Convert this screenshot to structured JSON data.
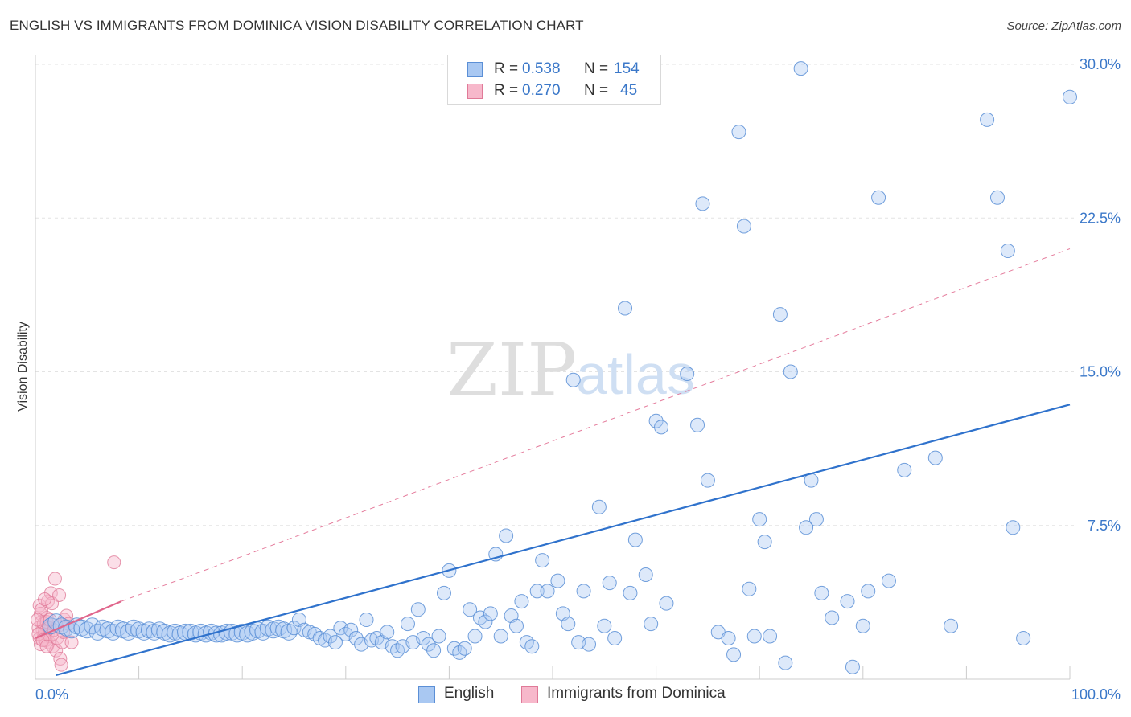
{
  "header": {
    "title": "ENGLISH VS IMMIGRANTS FROM DOMINICA VISION DISABILITY CORRELATION CHART",
    "source": "Source: ZipAtlas.com"
  },
  "colors": {
    "blue_fill": "#a9c8f2",
    "blue_stroke": "#5b8fd6",
    "blue_line": "#2f72cc",
    "pink_fill": "#f7b8cb",
    "pink_stroke": "#e07a98",
    "pink_line": "#e0668c",
    "axis_text": "#3b78c9",
    "grid": "#e3e3e3"
  },
  "legend_top": {
    "english": {
      "r_label": "R =",
      "r_value": "0.538",
      "n_label": "N =",
      "n_value": "154"
    },
    "dominica": {
      "r_label": "R =",
      "r_value": "0.270",
      "n_label": "N =",
      "n_value": "45"
    }
  },
  "legend_bottom": {
    "english": "English",
    "dominica": "Immigrants from Dominica"
  },
  "watermark": {
    "zip": "ZIP",
    "atlas": "atlas"
  },
  "chart_data": {
    "type": "scatter",
    "title": "ENGLISH VS IMMIGRANTS FROM DOMINICA VISION DISABILITY CORRELATION CHART",
    "xlabel": "",
    "ylabel": "Vision Disability",
    "xlim": [
      0,
      100
    ],
    "ylim": [
      0,
      30
    ],
    "x_tick_labels": [
      "0.0%",
      "100.0%"
    ],
    "y_ticks": [
      7.5,
      15.0,
      22.5,
      30.0
    ],
    "y_tick_labels": [
      "7.5%",
      "15.0%",
      "22.5%",
      "30.0%"
    ],
    "grid": true,
    "series": [
      {
        "name": "English",
        "r": 0.538,
        "n": 154,
        "trend": {
          "x": [
            2,
            100
          ],
          "y": [
            0.2,
            13.4
          ],
          "style": "solid"
        },
        "points": [
          [
            1.5,
            2.6
          ],
          [
            2.0,
            2.8
          ],
          [
            2.5,
            2.6
          ],
          [
            3.0,
            2.5
          ],
          [
            3.5,
            2.4
          ],
          [
            4.0,
            2.6
          ],
          [
            4.5,
            2.5
          ],
          [
            5.0,
            2.4
          ],
          [
            5.5,
            2.6
          ],
          [
            6.0,
            2.3
          ],
          [
            6.5,
            2.5
          ],
          [
            7.0,
            2.4
          ],
          [
            7.5,
            2.3
          ],
          [
            8.0,
            2.5
          ],
          [
            8.5,
            2.4
          ],
          [
            9.0,
            2.3
          ],
          [
            9.5,
            2.5
          ],
          [
            10.0,
            2.4
          ],
          [
            10.5,
            2.3
          ],
          [
            11.0,
            2.4
          ],
          [
            11.5,
            2.3
          ],
          [
            12.0,
            2.4
          ],
          [
            12.5,
            2.3
          ],
          [
            13.0,
            2.2
          ],
          [
            13.5,
            2.3
          ],
          [
            14.0,
            2.2
          ],
          [
            14.5,
            2.3
          ],
          [
            15.0,
            2.3
          ],
          [
            15.5,
            2.2
          ],
          [
            16.0,
            2.3
          ],
          [
            16.5,
            2.2
          ],
          [
            17.0,
            2.3
          ],
          [
            17.5,
            2.2
          ],
          [
            18.0,
            2.2
          ],
          [
            18.5,
            2.3
          ],
          [
            19.0,
            2.3
          ],
          [
            19.5,
            2.2
          ],
          [
            20.0,
            2.3
          ],
          [
            20.5,
            2.2
          ],
          [
            21.0,
            2.3
          ],
          [
            21.5,
            2.4
          ],
          [
            22.0,
            2.3
          ],
          [
            22.5,
            2.5
          ],
          [
            23.0,
            2.4
          ],
          [
            23.5,
            2.5
          ],
          [
            24.0,
            2.4
          ],
          [
            24.5,
            2.3
          ],
          [
            25.0,
            2.5
          ],
          [
            25.5,
            2.9
          ],
          [
            26.0,
            2.4
          ],
          [
            26.5,
            2.3
          ],
          [
            27.0,
            2.2
          ],
          [
            27.5,
            2.0
          ],
          [
            28.0,
            1.9
          ],
          [
            28.5,
            2.1
          ],
          [
            29.0,
            1.8
          ],
          [
            29.5,
            2.5
          ],
          [
            30.0,
            2.2
          ],
          [
            30.5,
            2.4
          ],
          [
            31.0,
            2.0
          ],
          [
            31.5,
            1.7
          ],
          [
            32.0,
            2.9
          ],
          [
            32.5,
            1.9
          ],
          [
            33.0,
            2.0
          ],
          [
            33.5,
            1.8
          ],
          [
            34.0,
            2.3
          ],
          [
            34.5,
            1.6
          ],
          [
            35.0,
            1.4
          ],
          [
            35.5,
            1.6
          ],
          [
            36.0,
            2.7
          ],
          [
            36.5,
            1.8
          ],
          [
            37.0,
            3.4
          ],
          [
            37.5,
            2.0
          ],
          [
            38.0,
            1.7
          ],
          [
            38.5,
            1.4
          ],
          [
            39.0,
            2.1
          ],
          [
            39.5,
            4.2
          ],
          [
            40.0,
            5.3
          ],
          [
            40.5,
            1.5
          ],
          [
            41.0,
            1.3
          ],
          [
            41.5,
            1.5
          ],
          [
            42.0,
            3.4
          ],
          [
            42.5,
            2.1
          ],
          [
            43.0,
            3.0
          ],
          [
            43.5,
            2.8
          ],
          [
            44.0,
            3.2
          ],
          [
            44.5,
            6.1
          ],
          [
            45.0,
            2.1
          ],
          [
            45.5,
            7.0
          ],
          [
            46.0,
            3.1
          ],
          [
            46.5,
            2.6
          ],
          [
            47.0,
            3.8
          ],
          [
            47.5,
            1.8
          ],
          [
            48.0,
            1.6
          ],
          [
            48.5,
            4.3
          ],
          [
            49.0,
            5.8
          ],
          [
            49.5,
            4.3
          ],
          [
            50.5,
            4.8
          ],
          [
            51.0,
            3.2
          ],
          [
            51.5,
            2.7
          ],
          [
            52.0,
            14.6
          ],
          [
            52.5,
            1.8
          ],
          [
            53.0,
            4.3
          ],
          [
            53.5,
            1.7
          ],
          [
            54.5,
            8.4
          ],
          [
            55.0,
            2.6
          ],
          [
            55.5,
            4.7
          ],
          [
            56.0,
            2.0
          ],
          [
            57.0,
            18.1
          ],
          [
            57.5,
            4.2
          ],
          [
            58.0,
            6.8
          ],
          [
            59.0,
            5.1
          ],
          [
            59.5,
            2.7
          ],
          [
            60.0,
            12.6
          ],
          [
            60.5,
            12.3
          ],
          [
            61.0,
            3.7
          ],
          [
            63.0,
            14.9
          ],
          [
            64.0,
            12.4
          ],
          [
            64.5,
            23.2
          ],
          [
            65.0,
            9.7
          ],
          [
            66.0,
            2.3
          ],
          [
            67.0,
            2.0
          ],
          [
            67.5,
            1.2
          ],
          [
            68.0,
            26.7
          ],
          [
            68.5,
            22.1
          ],
          [
            69.0,
            4.4
          ],
          [
            69.5,
            2.1
          ],
          [
            70.0,
            7.8
          ],
          [
            70.5,
            6.7
          ],
          [
            71.0,
            2.1
          ],
          [
            72.0,
            17.8
          ],
          [
            72.5,
            0.8
          ],
          [
            73.0,
            15.0
          ],
          [
            74.0,
            29.8
          ],
          [
            74.5,
            7.4
          ],
          [
            75.0,
            9.7
          ],
          [
            75.5,
            7.8
          ],
          [
            76.0,
            4.2
          ],
          [
            77.0,
            3.0
          ],
          [
            78.5,
            3.8
          ],
          [
            79.0,
            0.6
          ],
          [
            80.0,
            2.6
          ],
          [
            80.5,
            4.3
          ],
          [
            81.5,
            23.5
          ],
          [
            82.5,
            4.8
          ],
          [
            84.0,
            10.2
          ],
          [
            87.0,
            10.8
          ],
          [
            88.5,
            2.6
          ],
          [
            92.0,
            27.3
          ],
          [
            93.0,
            23.5
          ],
          [
            94.0,
            20.9
          ],
          [
            94.5,
            7.4
          ],
          [
            95.5,
            2.0
          ],
          [
            100.0,
            28.4
          ]
        ]
      },
      {
        "name": "Immigrants from Dominica",
        "r": 0.27,
        "n": 45,
        "trend": {
          "x": [
            0,
            8.3
          ],
          "y": [
            2.0,
            3.8
          ],
          "style": "solid",
          "extended_to": [
            100,
            21.0
          ],
          "extended_style": "dashed"
        },
        "points": [
          [
            0.4,
            3.6
          ],
          [
            0.5,
            3.2
          ],
          [
            0.6,
            2.8
          ],
          [
            0.7,
            2.4
          ],
          [
            0.8,
            2.1
          ],
          [
            0.9,
            1.9
          ],
          [
            1.0,
            2.6
          ],
          [
            1.1,
            3.0
          ],
          [
            1.2,
            2.2
          ],
          [
            1.3,
            1.8
          ],
          [
            0.3,
            2.5
          ],
          [
            0.4,
            2.0
          ],
          [
            0.5,
            1.7
          ],
          [
            0.6,
            3.4
          ],
          [
            0.8,
            2.7
          ],
          [
            0.9,
            2.3
          ],
          [
            1.0,
            1.9
          ],
          [
            1.1,
            2.8
          ],
          [
            1.2,
            3.8
          ],
          [
            1.3,
            2.5
          ],
          [
            1.4,
            2.1
          ],
          [
            1.5,
            4.2
          ],
          [
            1.6,
            3.7
          ],
          [
            1.7,
            1.6
          ],
          [
            1.8,
            2.4
          ],
          [
            1.9,
            4.9
          ],
          [
            2.0,
            1.4
          ],
          [
            2.1,
            2.0
          ],
          [
            2.2,
            2.6
          ],
          [
            2.3,
            4.1
          ],
          [
            2.4,
            1.0
          ],
          [
            2.5,
            0.7
          ],
          [
            2.6,
            1.8
          ],
          [
            2.7,
            2.3
          ],
          [
            2.8,
            2.9
          ],
          [
            3.0,
            3.1
          ],
          [
            3.2,
            2.7
          ],
          [
            3.5,
            1.8
          ],
          [
            0.2,
            2.9
          ],
          [
            0.3,
            2.2
          ],
          [
            0.7,
            1.9
          ],
          [
            0.9,
            3.9
          ],
          [
            1.1,
            1.6
          ],
          [
            1.4,
            2.9
          ],
          [
            7.6,
            5.7
          ]
        ]
      }
    ]
  }
}
